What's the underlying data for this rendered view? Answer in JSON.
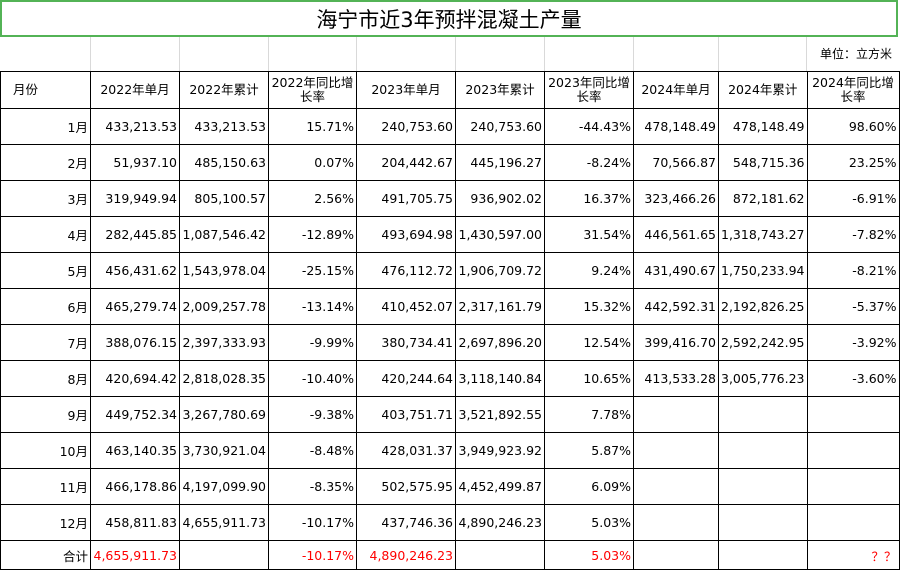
{
  "title": "海宁市近3年预拌混凝土产量",
  "unit_label": "单位：立方米",
  "headers": [
    "月份",
    "2022年单月",
    "2022年累计",
    "2022年同比增长率",
    "2023年单月",
    "2023年累计",
    "2023年同比增长率",
    "2024年单月",
    "2024年累计",
    "2024年同比增长率"
  ],
  "rows": [
    [
      "1月",
      "433,213.53",
      "433,213.53",
      "15.71%",
      "240,753.60",
      "240,753.60",
      "-44.43%",
      "478,148.49",
      "478,148.49",
      "98.60%"
    ],
    [
      "2月",
      "51,937.10",
      "485,150.63",
      "0.07%",
      "204,442.67",
      "445,196.27",
      "-8.24%",
      "70,566.87",
      "548,715.36",
      "23.25%"
    ],
    [
      "3月",
      "319,949.94",
      "805,100.57",
      "2.56%",
      "491,705.75",
      "936,902.02",
      "16.37%",
      "323,466.26",
      "872,181.62",
      "-6.91%"
    ],
    [
      "4月",
      "282,445.85",
      "1,087,546.42",
      "-12.89%",
      "493,694.98",
      "1,430,597.00",
      "31.54%",
      "446,561.65",
      "1,318,743.27",
      "-7.82%"
    ],
    [
      "5月",
      "456,431.62",
      "1,543,978.04",
      "-25.15%",
      "476,112.72",
      "1,906,709.72",
      "9.24%",
      "431,490.67",
      "1,750,233.94",
      "-8.21%"
    ],
    [
      "6月",
      "465,279.74",
      "2,009,257.78",
      "-13.14%",
      "410,452.07",
      "2,317,161.79",
      "15.32%",
      "442,592.31",
      "2,192,826.25",
      "-5.37%"
    ],
    [
      "7月",
      "388,076.15",
      "2,397,333.93",
      "-9.99%",
      "380,734.41",
      "2,697,896.20",
      "12.54%",
      "399,416.70",
      "2,592,242.95",
      "-3.92%"
    ],
    [
      "8月",
      "420,694.42",
      "2,818,028.35",
      "-10.40%",
      "420,244.64",
      "3,118,140.84",
      "10.65%",
      "413,533.28",
      "3,005,776.23",
      "-3.60%"
    ],
    [
      "9月",
      "449,752.34",
      "3,267,780.69",
      "-9.38%",
      "403,751.71",
      "3,521,892.55",
      "7.78%",
      "",
      "",
      ""
    ],
    [
      "10月",
      "463,140.35",
      "3,730,921.04",
      "-8.48%",
      "428,031.37",
      "3,949,923.92",
      "5.87%",
      "",
      "",
      ""
    ],
    [
      "11月",
      "466,178.86",
      "4,197,099.90",
      "-8.35%",
      "502,575.95",
      "4,452,499.87",
      "6.09%",
      "",
      "",
      ""
    ],
    [
      "12月",
      "458,811.83",
      "4,655,911.73",
      "-10.17%",
      "437,746.36",
      "4,890,246.23",
      "5.03%",
      "",
      "",
      ""
    ]
  ],
  "total": [
    "合计",
    "4,655,911.73",
    "",
    "-10.17%",
    "4,890,246.23",
    "",
    "5.03%",
    "",
    "",
    "？？"
  ],
  "colors": {
    "title_border": "#53b356",
    "highlight_text": "#ff0000",
    "grid": "#000000"
  }
}
